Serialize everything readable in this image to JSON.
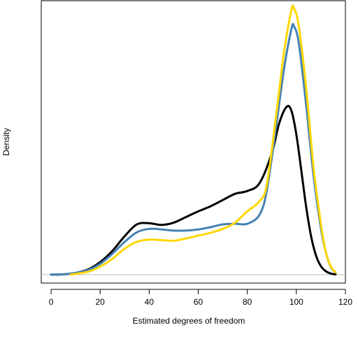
{
  "chart_data": {
    "type": "line",
    "title": "",
    "xlabel": "Estimated degrees of freedom",
    "ylabel": "Density",
    "xlim": [
      -4,
      120
    ],
    "ylim": [
      -0.0015,
      0.0485
    ],
    "xticks": [
      "0",
      "20",
      "40",
      "60",
      "80",
      "100",
      "120"
    ],
    "grid": false,
    "legend": "none",
    "baseline": {
      "y": 0,
      "color": "#BEBEBE"
    },
    "series": [
      {
        "color": "#000000",
        "x": [
          0,
          5,
          10,
          15,
          20,
          25,
          30,
          35,
          40,
          45,
          50,
          55,
          60,
          65,
          70,
          75,
          80,
          85,
          90,
          93,
          96,
          98,
          100,
          102,
          104,
          106,
          108,
          110,
          112,
          114,
          116
        ],
        "y": [
          0,
          5e-05,
          0.0003,
          0.0009,
          0.0022,
          0.0042,
          0.0068,
          0.0089,
          0.0091,
          0.0088,
          0.0092,
          0.0102,
          0.0112,
          0.0121,
          0.0132,
          0.0143,
          0.0148,
          0.0162,
          0.0215,
          0.0268,
          0.0297,
          0.029,
          0.0248,
          0.0185,
          0.012,
          0.0068,
          0.0034,
          0.0015,
          0.0006,
          0.0002,
          5e-05
        ]
      },
      {
        "color": "#4682B4",
        "x": [
          0,
          5,
          10,
          15,
          20,
          25,
          30,
          35,
          40,
          45,
          50,
          55,
          60,
          65,
          70,
          75,
          80,
          85,
          88,
          92,
          95,
          98,
          99,
          101,
          104,
          107,
          110,
          112,
          114,
          116
        ],
        "y": [
          0,
          5e-05,
          0.0003,
          0.0008,
          0.0019,
          0.0037,
          0.0058,
          0.0075,
          0.0081,
          0.008,
          0.0078,
          0.0078,
          0.008,
          0.0084,
          0.0089,
          0.009,
          0.009,
          0.0106,
          0.015,
          0.027,
          0.0365,
          0.0435,
          0.044,
          0.041,
          0.03,
          0.0175,
          0.0082,
          0.004,
          0.0014,
          0.0004
        ]
      },
      {
        "color": "#FFD700",
        "x": [
          8,
          15,
          20,
          25,
          30,
          35,
          40,
          45,
          50,
          55,
          60,
          65,
          70,
          75,
          80,
          85,
          88,
          92,
          95,
          98,
          99,
          101,
          104,
          107,
          110,
          112,
          114,
          116
        ],
        "y": [
          0,
          0.0005,
          0.0014,
          0.0028,
          0.0046,
          0.0058,
          0.0062,
          0.0061,
          0.006,
          0.0064,
          0.0069,
          0.0074,
          0.0081,
          0.0092,
          0.0112,
          0.013,
          0.016,
          0.029,
          0.0395,
          0.0468,
          0.0472,
          0.044,
          0.033,
          0.019,
          0.009,
          0.004,
          0.0015,
          0.0004
        ]
      }
    ]
  }
}
